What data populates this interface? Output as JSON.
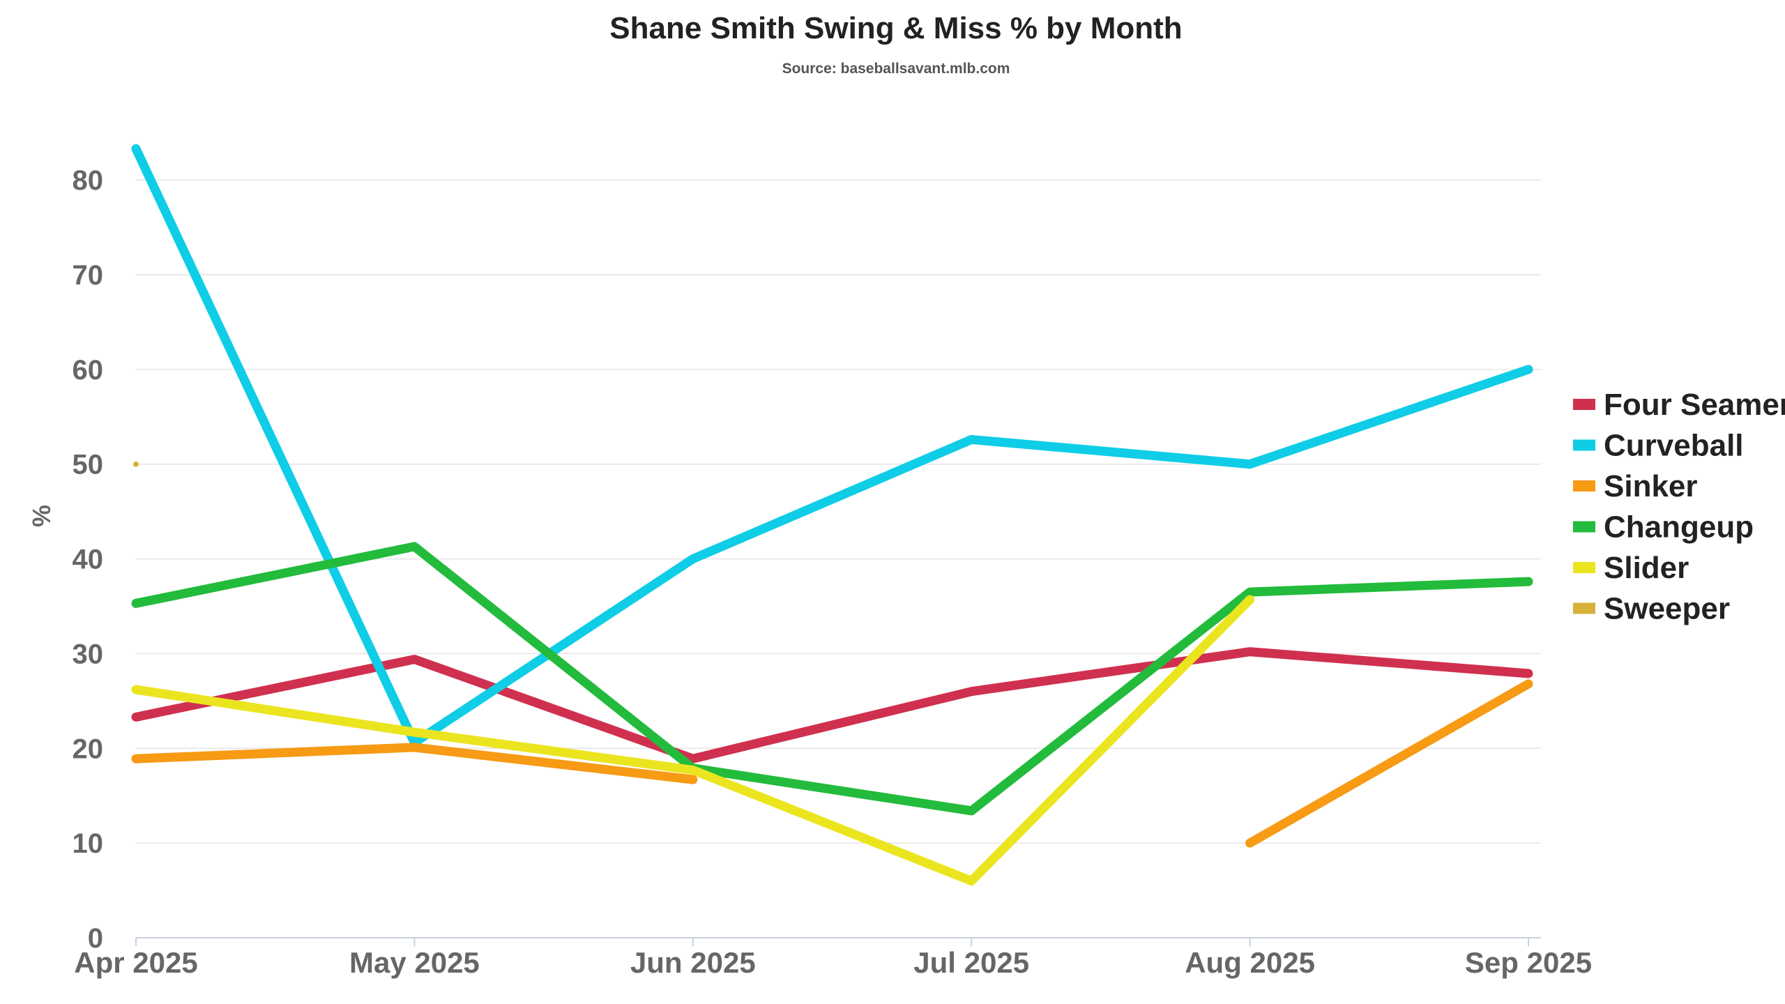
{
  "chart_data": {
    "type": "line",
    "title": "Shane Smith Swing & Miss % by Month",
    "subtitle": "Source: baseballsavant.mlb.com",
    "ylabel": "%",
    "xlabel": "",
    "categories": [
      "Apr 2025",
      "May 2025",
      "Jun 2025",
      "Jul 2025",
      "Aug 2025",
      "Sep 2025"
    ],
    "ylim": [
      0,
      85
    ],
    "yticks": [
      0,
      10,
      20,
      30,
      40,
      50,
      60,
      70,
      80
    ],
    "grid": true,
    "legend_position": "right",
    "series": [
      {
        "name": "Four Seamer",
        "color": "#d0304f",
        "values": [
          23.3,
          29.4,
          18.9,
          26.0,
          30.2,
          27.9
        ]
      },
      {
        "name": "Curveball",
        "color": "#0fcde6",
        "values": [
          83.3,
          20.6,
          40.0,
          52.6,
          50.0,
          60.0
        ]
      },
      {
        "name": "Sinker",
        "color": "#f79a14",
        "values": [
          18.9,
          20.1,
          16.7,
          null,
          10.0,
          26.8
        ]
      },
      {
        "name": "Changeup",
        "color": "#22bb3b",
        "values": [
          35.3,
          41.3,
          17.9,
          13.4,
          36.5,
          37.6
        ]
      },
      {
        "name": "Slider",
        "color": "#ebe51f",
        "values": [
          26.2,
          21.7,
          17.7,
          6.0,
          35.7,
          null
        ]
      },
      {
        "name": "Sweeper",
        "color": "#d7b13a",
        "values": [
          50.0,
          null,
          null,
          null,
          null,
          null
        ]
      }
    ]
  }
}
